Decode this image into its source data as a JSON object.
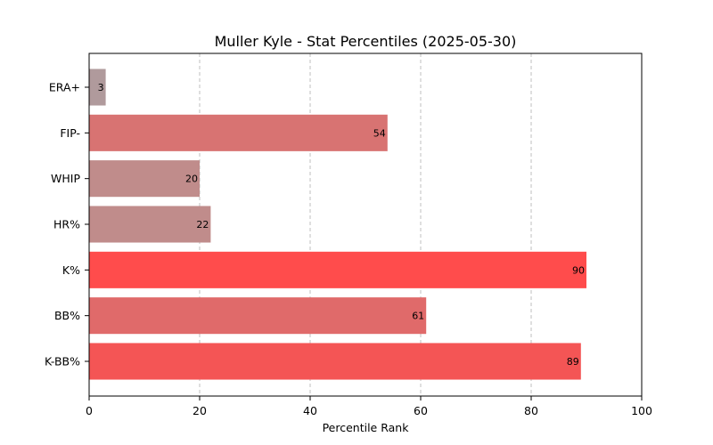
{
  "chart_data": {
    "type": "bar",
    "orientation": "horizontal",
    "title": "Muller Kyle - Stat Percentiles (2025-05-30)",
    "xlabel": "Percentile Rank",
    "ylabel": "",
    "xlim": [
      0,
      100
    ],
    "xticks": [
      0,
      20,
      40,
      60,
      80,
      100
    ],
    "grid": "x-dashed",
    "categories": [
      "ERA+",
      "FIP-",
      "WHIP",
      "HR%",
      "K%",
      "BB%",
      "K-BB%"
    ],
    "values": [
      3,
      54,
      20,
      22,
      90,
      61,
      89
    ],
    "colors": [
      "#b09a9c",
      "#d87372",
      "#c08c8b",
      "#c08c8b",
      "#ff4c4c",
      "#e06a6a",
      "#f45555"
    ]
  }
}
